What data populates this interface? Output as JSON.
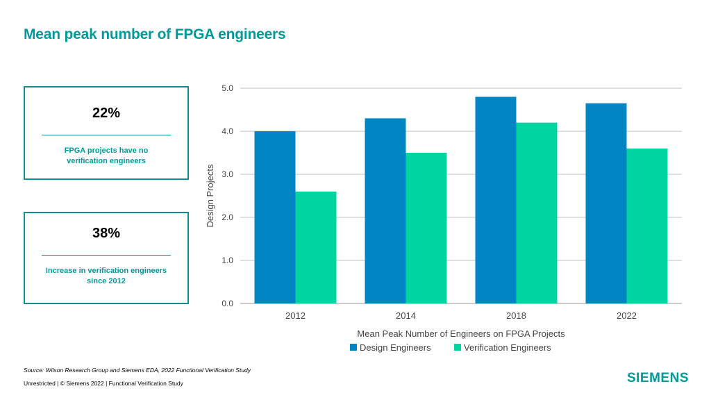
{
  "title": "Mean peak number of FPGA engineers",
  "stats": [
    {
      "value": "22%",
      "line1": "FPGA projects have no",
      "line2": "verification engineers"
    },
    {
      "value": "38%",
      "line1": "Increase in verification engineers",
      "line2": "since 2012"
    }
  ],
  "chart_data": {
    "type": "bar",
    "categories": [
      "2012",
      "2014",
      "2018",
      "2022"
    ],
    "series": [
      {
        "name": "Design Engineers",
        "color": "#0085c3",
        "values": [
          4.0,
          4.3,
          4.8,
          4.65
        ]
      },
      {
        "name": "Verification Engineers",
        "color": "#00d4a0",
        "values": [
          2.6,
          3.5,
          4.2,
          3.6
        ]
      }
    ],
    "xlabel": "Mean Peak Number of Engineers on FPGA Projects",
    "ylabel": "Design Projects",
    "ylim": [
      0,
      5
    ],
    "yticks": [
      "0.0",
      "1.0",
      "2.0",
      "3.0",
      "4.0",
      "5.0"
    ],
    "grid": true,
    "legend": "bottom"
  },
  "source": "Source:  Wilson Research Group and Siemens EDA, 2022 Functional Verification Study",
  "footer": "Unrestricted | © Siemens 2022 |  Functional Verification Study",
  "logo": "SIEMENS"
}
